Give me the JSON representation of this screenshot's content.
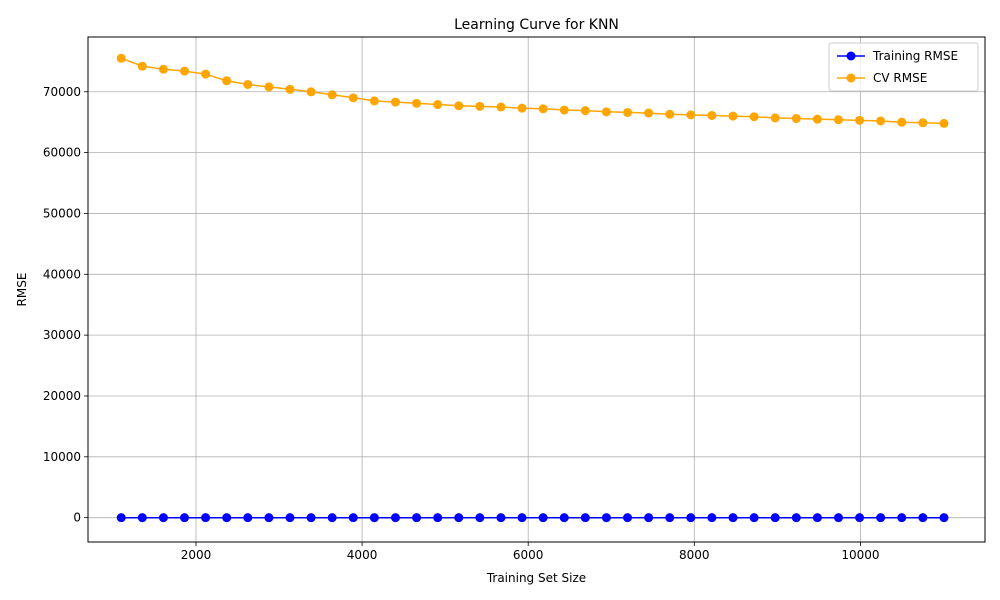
{
  "chart_data": {
    "type": "line",
    "title": "Learning Curve for KNN",
    "xlabel": "Training Set Size",
    "ylabel": "RMSE",
    "xlim": [
      700,
      11500
    ],
    "ylim": [
      -4000,
      79000
    ],
    "xticks": [
      2000,
      4000,
      6000,
      8000,
      10000
    ],
    "yticks": [
      0,
      10000,
      20000,
      30000,
      40000,
      50000,
      60000,
      70000
    ],
    "grid": true,
    "legend_position": "top-right",
    "x": [
      1100,
      1354,
      1608,
      1862,
      2116,
      2370,
      2624,
      2878,
      3132,
      3386,
      3640,
      3894,
      4148,
      4402,
      4656,
      4910,
      5164,
      5418,
      5672,
      5926,
      6180,
      6434,
      6688,
      6942,
      7196,
      7450,
      7704,
      7958,
      8212,
      8466,
      8720,
      8974,
      9228,
      9482,
      9736,
      9990,
      10244,
      10498,
      10752,
      11006
    ],
    "series": [
      {
        "name": "Training RMSE",
        "color": "#0000ff",
        "values": [
          0,
          0,
          0,
          0,
          0,
          0,
          0,
          0,
          0,
          0,
          0,
          0,
          0,
          0,
          0,
          0,
          0,
          0,
          0,
          0,
          0,
          0,
          0,
          0,
          0,
          0,
          0,
          0,
          0,
          0,
          0,
          0,
          0,
          0,
          0,
          0,
          0,
          0,
          0,
          0
        ]
      },
      {
        "name": "CV RMSE",
        "color": "#ffa500",
        "values": [
          75500,
          74200,
          73700,
          73400,
          72900,
          71800,
          71200,
          70800,
          70400,
          70000,
          69500,
          69000,
          68500,
          68300,
          68100,
          67900,
          67700,
          67600,
          67500,
          67300,
          67200,
          67000,
          66900,
          66700,
          66600,
          66500,
          66300,
          66200,
          66100,
          66000,
          65900,
          65700,
          65600,
          65500,
          65400,
          65300,
          65200,
          65000,
          64900,
          64800
        ]
      }
    ]
  }
}
